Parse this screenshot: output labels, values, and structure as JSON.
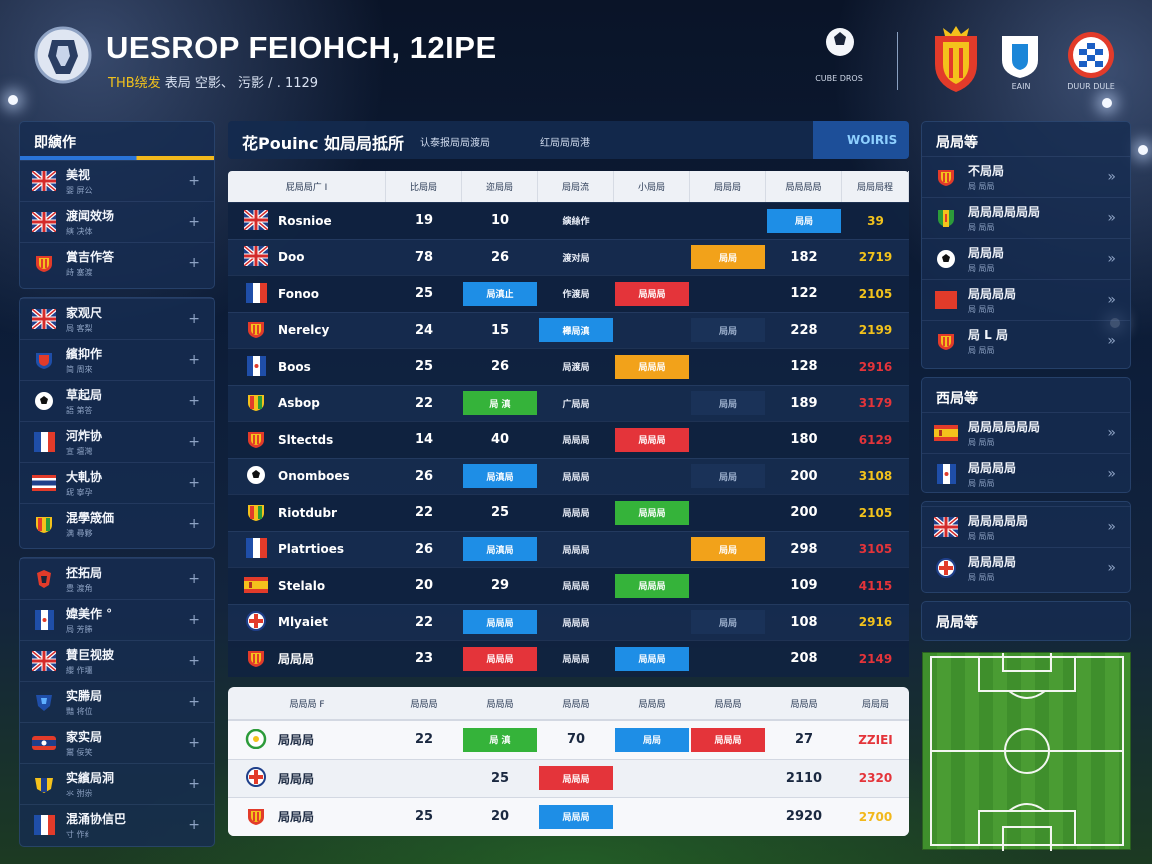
{
  "header": {
    "title": "UESROP FEIOHCH, 12IPE",
    "subtitle_highlight": "THB绕发",
    "subtitle_rest": "表局  空影、 污影  / .  1129",
    "sponsors": [
      {
        "label": "CUBE DROS"
      },
      {
        "label": ""
      },
      {
        "label": "EAIN"
      },
      {
        "label": "DUUR DULE"
      }
    ]
  },
  "left_panels": [
    {
      "title": "即縯作",
      "items": [
        {
          "flag": "uk",
          "label": "美视",
          "sub": "婴 屏公"
        },
        {
          "flag": "uk",
          "label": "渡闻效场",
          "sub": "縯 决体"
        },
        {
          "flag": "spain-crest",
          "label": "賞吉作答",
          "sub": "歭 塞渡"
        }
      ]
    },
    {
      "title": "",
      "items": [
        {
          "flag": "uk",
          "label": "家观尺",
          "sub": "局 客梨"
        },
        {
          "flag": "crest-red",
          "label": "繽抑作",
          "sub": "简 周來"
        },
        {
          "flag": "ball",
          "label": "草起局",
          "sub": "語 第答"
        },
        {
          "flag": "fr",
          "label": "河炸协",
          "sub": "宣 壇灣"
        },
        {
          "flag": "th",
          "label": "大軋协",
          "sub": "屔 寧孕"
        },
        {
          "flag": "crest-bw",
          "label": "混學筬価",
          "sub": "满 尋夥"
        }
      ]
    },
    {
      "title": "",
      "items": [
        {
          "flag": "crest-red2",
          "label": "抷拓局",
          "sub": "豊 渡角"
        },
        {
          "flag": "fr2",
          "label": "媁美作 °",
          "sub": "局 芳幐"
        },
        {
          "flag": "uk",
          "label": "賛巨视披",
          "sub": "纓 作壃"
        },
        {
          "flag": "crest-blue",
          "label": "实幐局",
          "sub": "豔 将位"
        },
        {
          "flag": "th2",
          "label": "家实局",
          "sub": "鬻 佞笑"
        },
        {
          "flag": "crest-yb",
          "label": "实繽局洞",
          "sub": "氺 弣尜"
        },
        {
          "flag": "fr",
          "label": "混涌协信巴",
          "sub": "寸 作纟"
        }
      ]
    }
  ],
  "main": {
    "heading": "花Pouinc 如局局抵所",
    "meta1": "认泰报局局渡局",
    "meta2": "红局局局港",
    "tab_label": "WOIRIS",
    "columns": [
      "屁局局广 I",
      "比局局",
      "迩局局",
      "局局流",
      "小局局",
      "局局局",
      "局局局局",
      "局局局程"
    ],
    "rows": [
      {
        "flag": "uk",
        "name": "Rosnioe",
        "c1": "19",
        "c2": "10",
        "c3": {
          "type": "text",
          "v": "縯絲作"
        },
        "c4": {
          "type": "none",
          "v": ""
        },
        "c5": {
          "type": "none",
          "v": ""
        },
        "c6": {
          "type": "chip",
          "color": "blue",
          "v": "局局"
        },
        "pts": "39",
        "ptscolor": "#f2c21c"
      },
      {
        "flag": "uk",
        "name": "Doo",
        "c1": "78",
        "c2": "26",
        "c3": {
          "type": "text",
          "v": "渡对局"
        },
        "c4": {
          "type": "none",
          "v": ""
        },
        "c5": {
          "type": "chip",
          "color": "orange",
          "v": "局局"
        },
        "c6": {
          "type": "text",
          "v": "182"
        },
        "pts": "2719",
        "ptscolor": "#f2c21c"
      },
      {
        "flag": "fr",
        "name": "Fonoo",
        "c1": "25",
        "c2": {
          "type": "chip",
          "color": "blue",
          "v": "局滇止"
        },
        "c3": {
          "type": "text",
          "v": "作渡局"
        },
        "c4": {
          "type": "chip",
          "color": "red",
          "v": "局局局"
        },
        "c5": {
          "type": "text",
          "v": " "
        },
        "c6": {
          "type": "text",
          "v": "122"
        },
        "pts": "2105",
        "ptscolor": "#f2c21c"
      },
      {
        "flag": "spain-crest",
        "name": "Nerelcy",
        "c1": "24",
        "c2": "15",
        "c3": {
          "type": "chip",
          "color": "blue",
          "v": "櫸局滇"
        },
        "c4": {
          "type": "none",
          "v": ""
        },
        "c5": {
          "type": "chip",
          "color": "dark",
          "v": "局局"
        },
        "c6": {
          "type": "text",
          "v": "228"
        },
        "pts": "2199",
        "ptscolor": "#f2c21c"
      },
      {
        "flag": "fr2",
        "name": "Boos",
        "c1": "25",
        "c2": "26",
        "c3": {
          "type": "text",
          "v": "局渡局"
        },
        "c4": {
          "type": "chip",
          "color": "orange",
          "v": "局局局"
        },
        "c5": {
          "type": "none",
          "v": ""
        },
        "c6": {
          "type": "text",
          "v": "128"
        },
        "pts": "2916",
        "ptscolor": "#e4343a"
      },
      {
        "flag": "crest-bw",
        "name": "Asbop",
        "c1": "22",
        "c2": {
          "type": "chip",
          "color": "green",
          "v": "局 滇"
        },
        "c3": {
          "type": "text",
          "v": "广局局"
        },
        "c4": {
          "type": "none",
          "v": ""
        },
        "c5": {
          "type": "chip",
          "color": "dark",
          "v": "局局"
        },
        "c6": {
          "type": "text",
          "v": "189"
        },
        "pts": "3179",
        "ptscolor": "#e4343a"
      },
      {
        "flag": "spain-crest",
        "name": "Sltectds",
        "c1": "14",
        "c2": "40",
        "c3": {
          "type": "text",
          "v": "局局局"
        },
        "c4": {
          "type": "chip",
          "color": "red",
          "v": "局局局"
        },
        "c5": {
          "type": "none",
          "v": ""
        },
        "c6": {
          "type": "text",
          "v": "180"
        },
        "pts": "6129",
        "ptscolor": "#e4343a"
      },
      {
        "flag": "ball",
        "name": "Onomboes",
        "c1": "26",
        "c2": {
          "type": "chip",
          "color": "blue",
          "v": "局滇局"
        },
        "c3": {
          "type": "text",
          "v": "局局局"
        },
        "c4": {
          "type": "none",
          "v": ""
        },
        "c5": {
          "type": "chip",
          "color": "dark",
          "v": "局局"
        },
        "c6": {
          "type": "text",
          "v": "200"
        },
        "pts": "3108",
        "ptscolor": "#f2c21c"
      },
      {
        "flag": "crest-bw",
        "name": "Riotdubr",
        "c1": "22",
        "c2": "25",
        "c3": {
          "type": "text",
          "v": "局局局"
        },
        "c4": {
          "type": "chip",
          "color": "green",
          "v": "局局局"
        },
        "c5": {
          "type": "none",
          "v": ""
        },
        "c6": {
          "type": "text",
          "v": "200"
        },
        "pts": "2105",
        "ptscolor": "#f2c21c"
      },
      {
        "flag": "fr",
        "name": "Platrtioes",
        "c1": "26",
        "c2": {
          "type": "chip",
          "color": "blue",
          "v": "局滇局"
        },
        "c3": {
          "type": "text",
          "v": "局局局"
        },
        "c4": {
          "type": "none",
          "v": ""
        },
        "c5": {
          "type": "chip",
          "color": "orange",
          "v": "局局"
        },
        "c6": {
          "type": "text",
          "v": "298"
        },
        "pts": "3105",
        "ptscolor": "#e4343a"
      },
      {
        "flag": "es",
        "name": "Stelalo",
        "c1": "20",
        "c2": "29",
        "c3": {
          "type": "text",
          "v": "局局局"
        },
        "c4": {
          "type": "chip",
          "color": "green",
          "v": "局局局"
        },
        "c5": {
          "type": "none",
          "v": ""
        },
        "c6": {
          "type": "text",
          "v": "109"
        },
        "pts": "4115",
        "ptscolor": "#e4343a"
      },
      {
        "flag": "crest-uk",
        "name": "Mlyaiet",
        "c1": "22",
        "c2": {
          "type": "chip",
          "color": "blue",
          "v": "局局局"
        },
        "c3": {
          "type": "text",
          "v": "局局局"
        },
        "c4": {
          "type": "none",
          "v": ""
        },
        "c5": {
          "type": "chip",
          "color": "dark",
          "v": "局局"
        },
        "c6": {
          "type": "text",
          "v": "108"
        },
        "pts": "2916",
        "ptscolor": "#f2c21c"
      },
      {
        "flag": "spain-crest",
        "name": "局局局",
        "c1": "23",
        "c2": {
          "type": "chip",
          "color": "red",
          "v": "局局局"
        },
        "c3": {
          "type": "text",
          "v": "局局局"
        },
        "c4": {
          "type": "chip",
          "color": "blue",
          "v": "局局局"
        },
        "c5": {
          "type": "none",
          "v": ""
        },
        "c6": {
          "type": "text",
          "v": "208"
        },
        "pts": "2149",
        "ptscolor": "#e4343a"
      }
    ]
  },
  "bottom": {
    "columns": [
      "局局局 F",
      "局局局",
      "局局局",
      "局局局",
      "局局局",
      "局局局",
      "局局局",
      "局局局"
    ],
    "rows": [
      {
        "flag": "ring-green",
        "name": "局局局",
        "c1": "22",
        "c2": {
          "type": "chip",
          "color": "green",
          "v": "局 滇"
        },
        "c3": {
          "type": "text",
          "v": "70"
        },
        "c4": {
          "type": "chip",
          "color": "blue",
          "v": "局局"
        },
        "c5": {
          "type": "chip",
          "color": "red",
          "v": "局局局"
        },
        "c6": {
          "type": "text",
          "v": "27"
        },
        "pts": "ZZIEI",
        "ptscolor": "#e4343a"
      },
      {
        "flag": "crest-uk",
        "name": "局局局",
        "c1": "",
        "c2": {
          "type": "text",
          "v": "25"
        },
        "c3": {
          "type": "chip",
          "color": "red",
          "v": "局局局"
        },
        "c4": {
          "type": "none",
          "v": ""
        },
        "c5": {
          "type": "none",
          "v": ""
        },
        "c6": {
          "type": "text",
          "v": "2110"
        },
        "pts": "2320",
        "ptscolor": "#e4343a"
      },
      {
        "flag": "spain-crest",
        "name": "局局局",
        "c1": "25",
        "c2": {
          "type": "text",
          "v": "20"
        },
        "c3": {
          "type": "chip",
          "color": "blue",
          "v": "局局局"
        },
        "c4": {
          "type": "none",
          "v": ""
        },
        "c5": {
          "type": "none",
          "v": ""
        },
        "c6": {
          "type": "text",
          "v": "2920"
        },
        "pts": "2700",
        "ptscolor": "#f2b81c"
      }
    ]
  },
  "right_panels": [
    {
      "title": "局局等",
      "items": [
        {
          "flag": "spain-crest",
          "label": "不局局",
          "sub": "局 局局"
        },
        {
          "flag": "crest-green",
          "label": "局局局局局局",
          "sub": "局 局局"
        },
        {
          "flag": "ball",
          "label": "局局局",
          "sub": "局 局局"
        },
        {
          "flag": "red-square",
          "label": "局局局局",
          "sub": "局 局局"
        },
        {
          "flag": "spain-crest",
          "label": "局 L 局",
          "sub": "局 局局"
        }
      ]
    },
    {
      "title": "西局等",
      "items": [
        {
          "flag": "es",
          "label": "局局局局局局",
          "sub": "局 局局"
        },
        {
          "flag": "fr2",
          "label": "局局局局",
          "sub": "局 局局"
        }
      ]
    },
    {
      "title": "",
      "items": [
        {
          "flag": "uk",
          "label": "局局局局局",
          "sub": "局 局局"
        },
        {
          "flag": "crest-uk",
          "label": "局局局局",
          "sub": "局 局局"
        }
      ]
    },
    {
      "title": "局局等",
      "items": []
    }
  ],
  "colors": {
    "accent_blue": "#1e8ee6",
    "accent_green": "#35b33a",
    "accent_red": "#e4343a",
    "accent_orange": "#f2a21a",
    "gold": "#f2c21c"
  }
}
